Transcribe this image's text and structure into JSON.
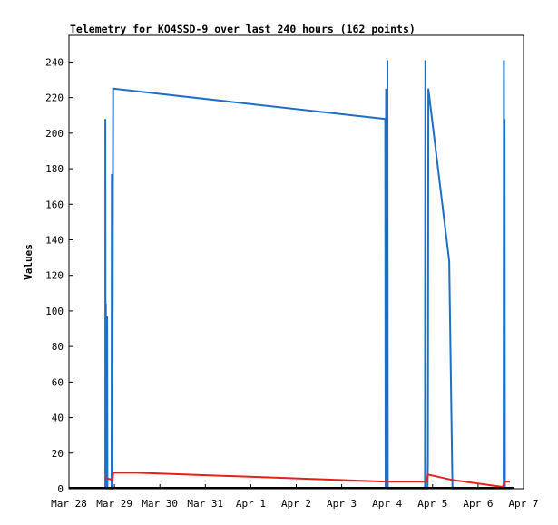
{
  "chart_data": {
    "type": "line",
    "title": "Telemetry for KO4SSD-9 over last 240 hours (162 points)",
    "xlabel": "",
    "ylabel": "Values",
    "xlim": [
      "2025-03-28T00:00",
      "2025-04-07T00:00"
    ],
    "ylim": [
      0,
      255
    ],
    "y_ticks": [
      0,
      20,
      40,
      60,
      80,
      100,
      120,
      140,
      160,
      180,
      200,
      220,
      240
    ],
    "x_ticks": [
      {
        "t": "2025-03-28T00:00",
        "label": "Mar 28"
      },
      {
        "t": "2025-03-29T00:00",
        "label": "Mar 29"
      },
      {
        "t": "2025-03-30T00:00",
        "label": "Mar 30"
      },
      {
        "t": "2025-03-31T00:00",
        "label": "Mar 31"
      },
      {
        "t": "2025-04-01T00:00",
        "label": "Apr 1"
      },
      {
        "t": "2025-04-02T00:00",
        "label": "Apr 2"
      },
      {
        "t": "2025-04-03T00:00",
        "label": "Apr 3"
      },
      {
        "t": "2025-04-04T00:00",
        "label": "Apr 4"
      },
      {
        "t": "2025-04-05T00:00",
        "label": "Apr 5"
      },
      {
        "t": "2025-04-06T00:00",
        "label": "Apr 6"
      },
      {
        "t": "2025-04-07T00:00",
        "label": "Apr 7"
      }
    ],
    "grid": false,
    "legend": "none",
    "series": [
      {
        "color": "#1f6fc5",
        "points": [
          [
            "2025-03-28T19:12",
            0
          ],
          [
            "2025-03-28T19:12",
            208
          ],
          [
            "2025-03-28T19:20",
            0
          ],
          [
            "2025-03-28T19:30",
            104
          ],
          [
            "2025-03-28T19:40",
            0
          ],
          [
            "2025-03-28T20:10",
            97
          ],
          [
            "2025-03-28T20:20",
            0
          ],
          [
            "2025-03-28T22:30",
            0
          ],
          [
            "2025-03-28T22:40",
            177
          ],
          [
            "2025-03-28T22:50",
            0
          ],
          [
            "2025-03-28T23:20",
            225
          ],
          [
            "2025-04-03T23:00",
            208
          ],
          [
            "2025-04-03T23:10",
            0
          ],
          [
            "2025-04-03T23:25",
            225
          ],
          [
            "2025-04-03T23:35",
            0
          ],
          [
            "2025-04-03T23:50",
            145
          ],
          [
            "2025-04-04T00:00",
            0
          ],
          [
            "2025-04-04T00:10",
            241
          ],
          [
            "2025-04-04T00:20",
            0
          ],
          [
            "2025-04-04T20:00",
            0
          ],
          [
            "2025-04-04T20:10",
            241
          ],
          [
            "2025-04-04T20:20",
            0
          ],
          [
            "2025-04-04T21:20",
            0
          ],
          [
            "2025-04-04T21:30",
            15
          ],
          [
            "2025-04-04T21:45",
            225
          ],
          [
            "2025-04-05T08:45",
            128
          ],
          [
            "2025-04-05T10:30",
            0
          ],
          [
            "2025-04-06T13:30",
            0
          ],
          [
            "2025-04-06T13:40",
            241
          ],
          [
            "2025-04-06T13:50",
            0
          ],
          [
            "2025-04-06T14:00",
            208
          ],
          [
            "2025-04-06T14:10",
            0
          ],
          [
            "2025-04-06T16:45",
            0
          ]
        ]
      },
      {
        "color": "#e8201a",
        "points": [
          [
            "2025-03-28T19:12",
            6
          ],
          [
            "2025-03-28T23:00",
            5
          ],
          [
            "2025-03-28T23:20",
            9
          ],
          [
            "2025-03-29T12:00",
            9
          ],
          [
            "2025-04-04T00:10",
            4
          ],
          [
            "2025-04-04T21:00",
            4
          ],
          [
            "2025-04-04T21:30",
            8
          ],
          [
            "2025-04-05T10:00",
            5
          ],
          [
            "2025-04-06T13:00",
            1
          ],
          [
            "2025-04-06T14:10",
            4
          ],
          [
            "2025-04-06T16:45",
            4
          ]
        ]
      }
    ]
  }
}
